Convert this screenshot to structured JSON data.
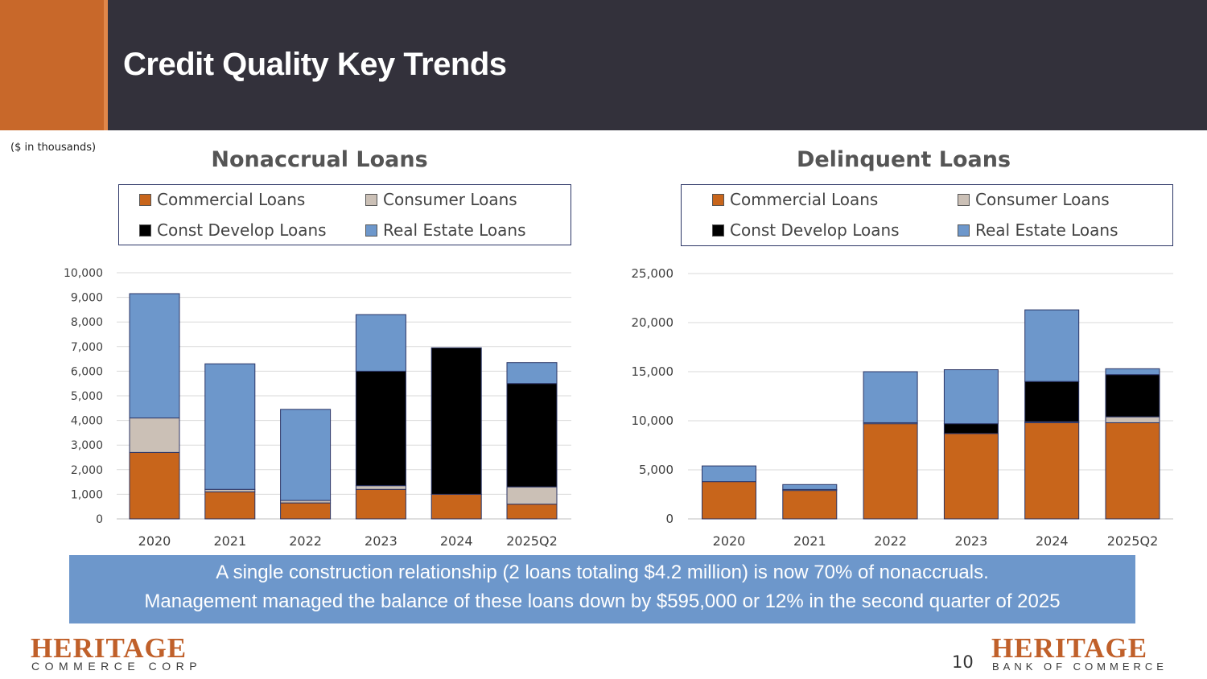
{
  "slide": {
    "title": "Credit Quality Key Trends",
    "units_note": "($ in thousands)",
    "callout": {
      "line1": "A single construction relationship (2 loans totaling $4.2 million) is now 70% of nonaccruals.",
      "line2": "Management managed the balance of these loans down by $595,000 or 12% in the second quarter of 2025"
    },
    "page_number": "10",
    "logo_left": {
      "name": "HERITAGE",
      "tagline": "COMMERCE CORP"
    },
    "logo_right": {
      "name": "HERITAGE",
      "tagline": "BANK OF COMMERCE"
    }
  },
  "colors": {
    "commercial": "#c8651b",
    "consumer": "#cbc0b6",
    "const_develop": "#000000",
    "real_estate": "#6d97cb"
  },
  "chart_data": [
    {
      "type": "bar",
      "stacked": true,
      "title": "Nonaccrual Loans",
      "categories": [
        "2020",
        "2021",
        "2022",
        "2023",
        "2024",
        "2025Q2"
      ],
      "ylim": [
        0,
        10000
      ],
      "yticks": [
        "0",
        "1,000",
        "2,000",
        "3,000",
        "4,000",
        "5,000",
        "6,000",
        "7,000",
        "8,000",
        "9,000",
        "10,000"
      ],
      "legend": [
        "Commercial Loans",
        "Consumer Loans",
        "Const Develop Loans",
        "Real Estate Loans"
      ],
      "series": [
        {
          "name": "Commercial Loans",
          "values": [
            2700,
            1100,
            650,
            1200,
            1000,
            600
          ]
        },
        {
          "name": "Consumer Loans",
          "values": [
            1400,
            100,
            100,
            150,
            0,
            700
          ]
        },
        {
          "name": "Const Develop Loans",
          "values": [
            0,
            0,
            0,
            4650,
            5950,
            4200
          ]
        },
        {
          "name": "Real Estate Loans",
          "values": [
            5050,
            5100,
            3700,
            2300,
            0,
            850
          ]
        }
      ]
    },
    {
      "type": "bar",
      "stacked": true,
      "title": "Delinquent Loans",
      "categories": [
        "2020",
        "2021",
        "2022",
        "2023",
        "2024",
        "2025Q2"
      ],
      "ylim": [
        0,
        25000
      ],
      "yticks": [
        "0",
        "5,000",
        "10,000",
        "15,000",
        "20,000",
        "25,000"
      ],
      "legend": [
        "Commercial Loans",
        "Consumer Loans",
        "Const Develop Loans",
        "Real Estate Loans"
      ],
      "series": [
        {
          "name": "Commercial Loans",
          "values": [
            3800,
            2900,
            9700,
            8700,
            9800,
            9800
          ]
        },
        {
          "name": "Consumer Loans",
          "values": [
            0,
            100,
            100,
            0,
            100,
            600
          ]
        },
        {
          "name": "Const Develop Loans",
          "values": [
            0,
            0,
            0,
            1000,
            4100,
            4300
          ]
        },
        {
          "name": "Real Estate Loans",
          "values": [
            1600,
            500,
            5200,
            5500,
            7300,
            600
          ]
        }
      ]
    }
  ]
}
